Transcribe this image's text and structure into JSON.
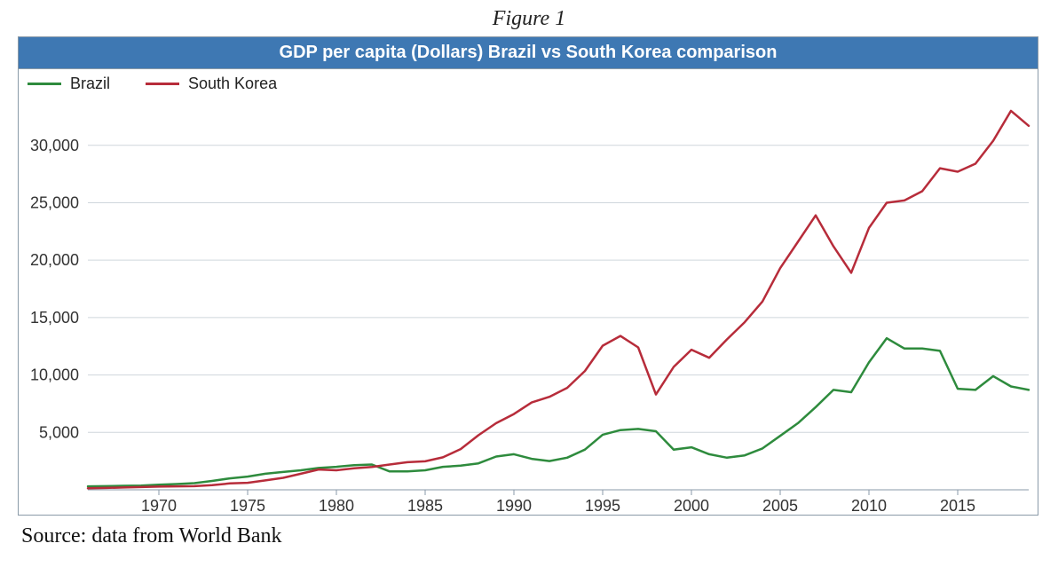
{
  "figure_caption": "Figure 1",
  "source_text": "Source: data from World Bank",
  "chart": {
    "type": "line",
    "title": "GDP per capita (Dollars) Brazil vs South Korea comparison",
    "title_bar_color": "#3e78b3",
    "title_text_color": "#ffffff",
    "title_fontsize": 20,
    "title_fontweight": "bold",
    "background_color": "#ffffff",
    "border_color": "#8a9aa8",
    "grid_color": "#cfd6dc",
    "axis_tick_color": "#8a9aa8",
    "tick_font_color": "#333333",
    "tick_fontsize": 18,
    "legend_fontsize": 18,
    "x": {
      "min": 1966,
      "max": 2019,
      "ticks": [
        1970,
        1975,
        1980,
        1985,
        1990,
        1995,
        2000,
        2005,
        2010,
        2015
      ]
    },
    "y": {
      "min": 0,
      "max": 34000,
      "ticks": [
        5000,
        10000,
        15000,
        20000,
        25000,
        30000
      ],
      "tick_labels": [
        "5,000",
        "10,000",
        "15,000",
        "20,000",
        "25,000",
        "30,000"
      ]
    },
    "series": [
      {
        "name": "Brazil",
        "color": "#2e8b3d",
        "line_width": 2.5,
        "x": [
          1966,
          1967,
          1968,
          1969,
          1970,
          1971,
          1972,
          1973,
          1974,
          1975,
          1976,
          1977,
          1978,
          1979,
          1980,
          1981,
          1982,
          1983,
          1984,
          1985,
          1986,
          1987,
          1988,
          1989,
          1990,
          1991,
          1992,
          1993,
          1994,
          1995,
          1996,
          1997,
          1998,
          1999,
          2000,
          2001,
          2002,
          2003,
          2004,
          2005,
          2006,
          2007,
          2008,
          2009,
          2010,
          2011,
          2012,
          2013,
          2014,
          2015,
          2016,
          2017,
          2018,
          2019
        ],
        "y": [
          300,
          320,
          350,
          370,
          450,
          500,
          580,
          770,
          1000,
          1150,
          1400,
          1550,
          1700,
          1900,
          2000,
          2150,
          2200,
          1600,
          1600,
          1700,
          2000,
          2100,
          2300,
          2900,
          3100,
          2700,
          2500,
          2800,
          3500,
          4800,
          5200,
          5300,
          5100,
          3500,
          3700,
          3100,
          2800,
          3000,
          3600,
          4700,
          5800,
          7200,
          8700,
          8500,
          11100,
          13200,
          12300,
          12300,
          12100,
          8800,
          8700,
          9900,
          9000,
          8700
        ]
      },
      {
        "name": "South Korea",
        "color": "#b72c3a",
        "line_width": 2.5,
        "x": [
          1966,
          1967,
          1968,
          1969,
          1970,
          1971,
          1972,
          1973,
          1974,
          1975,
          1976,
          1977,
          1978,
          1979,
          1980,
          1981,
          1982,
          1983,
          1984,
          1985,
          1986,
          1987,
          1988,
          1989,
          1990,
          1991,
          1992,
          1993,
          1994,
          1995,
          1996,
          1997,
          1998,
          1999,
          2000,
          2001,
          2002,
          2003,
          2004,
          2005,
          2006,
          2007,
          2008,
          2009,
          2010,
          2011,
          2012,
          2013,
          2014,
          2015,
          2016,
          2017,
          2018,
          2019
        ],
        "y": [
          130,
          160,
          200,
          240,
          280,
          300,
          320,
          400,
          560,
          610,
          820,
          1040,
          1400,
          1770,
          1700,
          1880,
          1990,
          2200,
          2400,
          2480,
          2830,
          3550,
          4750,
          5800,
          6600,
          7600,
          8100,
          8880,
          10350,
          12550,
          13400,
          12400,
          8300,
          10700,
          12200,
          11500,
          13100,
          14600,
          16400,
          19300,
          21600,
          23900,
          21200,
          18900,
          22800,
          25000,
          25200,
          26000,
          28000,
          27700,
          28400,
          30400,
          33000,
          31700
        ]
      }
    ]
  }
}
